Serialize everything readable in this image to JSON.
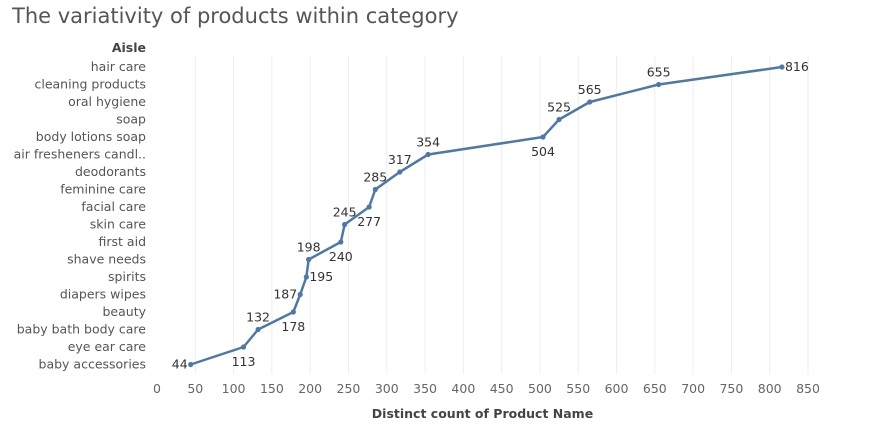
{
  "chart_data": {
    "type": "line",
    "title": "The variativity of products within category",
    "row_header": "Aisle",
    "xlabel": "Distinct count of Product Name",
    "xlim": [
      0,
      850
    ],
    "xticks": [
      0,
      50,
      100,
      150,
      200,
      250,
      300,
      350,
      400,
      450,
      500,
      550,
      600,
      650,
      700,
      750,
      800,
      850
    ],
    "grid": true,
    "color": "#4e79a7",
    "categories": [
      "hair care",
      "cleaning products",
      "oral hygiene",
      "soap",
      "body lotions soap",
      "air fresheners candl..",
      "deodorants",
      "feminine care",
      "facial care",
      "skin care",
      "first aid",
      "shave needs",
      "spirits",
      "diapers wipes",
      "beauty",
      "baby bath body care",
      "eye ear care",
      "baby accessories"
    ],
    "values": [
      816,
      655,
      565,
      525,
      504,
      354,
      317,
      285,
      277,
      245,
      240,
      198,
      195,
      187,
      178,
      132,
      113,
      44
    ]
  }
}
